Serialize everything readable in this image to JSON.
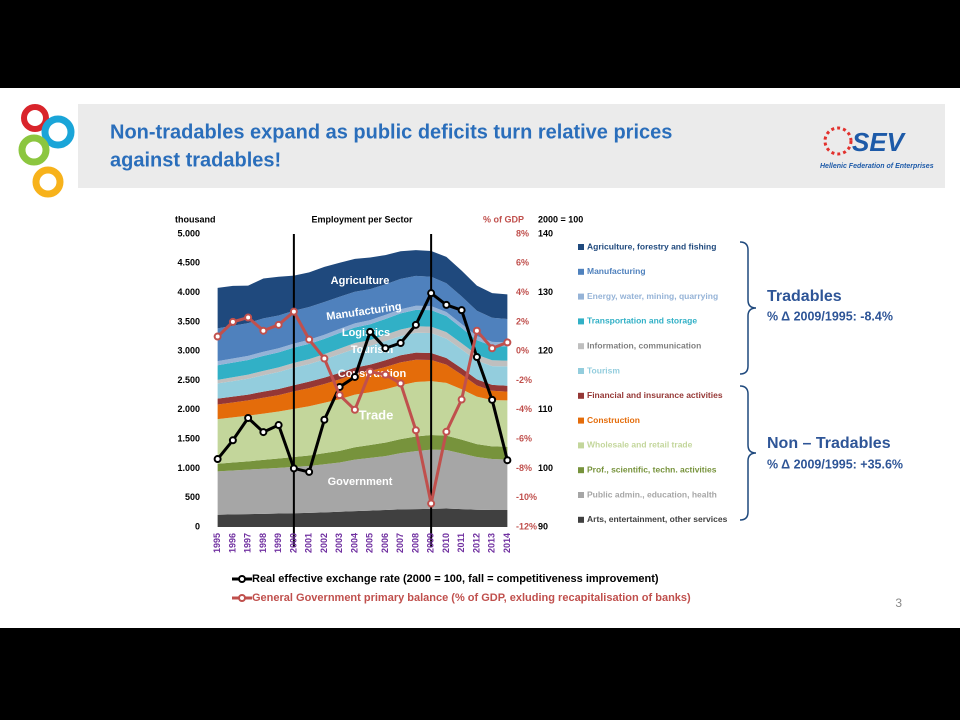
{
  "header": {
    "title": [
      "Non-tradables expand as public deficits turn relative prices",
      "against tradables!"
    ]
  },
  "logo": {
    "name": "SEV",
    "tagline": "Hellenic Federation of Enterprises"
  },
  "page_number": "3",
  "chart_data": {
    "type": "area",
    "title": "Employment per Sector",
    "y_label": "thousand",
    "y2_label": "% of GDP",
    "y3_label": "2000 = 100",
    "categories": [
      "1995",
      "1996",
      "1997",
      "1998",
      "1999",
      "2000",
      "2001",
      "2002",
      "2003",
      "2004",
      "2005",
      "2006",
      "2007",
      "2008",
      "2009",
      "2010",
      "2011",
      "2012",
      "2013",
      "2014"
    ],
    "ylim": [
      0,
      5000
    ],
    "yticks": [
      0,
      {
        "value": 500,
        "label": "500"
      },
      {
        "value": 1000,
        "label": "1.000"
      },
      {
        "value": 1500,
        "label": "1.500"
      },
      {
        "value": 2000,
        "label": "2.000"
      },
      {
        "value": 2500,
        "label": "2.500"
      },
      {
        "value": 3000,
        "label": "3.000"
      },
      {
        "value": 3500,
        "label": "3.500"
      },
      {
        "value": 4000,
        "label": "4.000"
      },
      {
        "value": 4500,
        "label": "4.500"
      },
      {
        "value": 5000,
        "label": "5.000"
      }
    ],
    "y2lim": [
      -12,
      8
    ],
    "y2ticks": [
      {
        "value": -12,
        "label": "-12%"
      },
      {
        "value": -10,
        "label": "-10%"
      },
      {
        "value": -8,
        "label": "-8%"
      },
      {
        "value": -6,
        "label": "-6%"
      },
      {
        "value": -4,
        "label": "-4%"
      },
      {
        "value": -2,
        "label": "-2%"
      },
      {
        "value": 0,
        "label": "0%"
      },
      {
        "value": 2,
        "label": "2%"
      },
      {
        "value": 4,
        "label": "4%"
      },
      {
        "value": 6,
        "label": "6%"
      },
      {
        "value": 8,
        "label": "8%"
      }
    ],
    "y3lim": [
      90,
      140
    ],
    "y3ticks": [
      90,
      100,
      110,
      120,
      130,
      140
    ],
    "series": [
      {
        "name": "Arts, entertainment, other services",
        "color": "#404040",
        "values": [
          210,
          215,
          220,
          225,
          230,
          235,
          240,
          250,
          260,
          270,
          280,
          290,
          300,
          305,
          310,
          315,
          305,
          295,
          290,
          290
        ]
      },
      {
        "name": "Public admin., education, health",
        "color": "#a6a6a6",
        "values": [
          740,
          750,
          760,
          770,
          780,
          790,
          800,
          820,
          840,
          880,
          900,
          920,
          960,
          990,
          1010,
          1000,
          950,
          900,
          870,
          860
        ]
      },
      {
        "name": "Prof., scientific, techn. activities",
        "color": "#77933c",
        "values": [
          130,
          135,
          140,
          150,
          160,
          170,
          180,
          190,
          200,
          210,
          220,
          230,
          240,
          250,
          250,
          245,
          235,
          220,
          215,
          220
        ]
      },
      {
        "name": "Wholesale and retail trade",
        "color": "#c3d69b",
        "values": [
          760,
          770,
          780,
          790,
          800,
          820,
          840,
          860,
          880,
          900,
          900,
          910,
          920,
          930,
          920,
          900,
          860,
          810,
          790,
          790
        ]
      },
      {
        "name": "Construction",
        "color": "#e46c0a",
        "values": [
          250,
          255,
          260,
          270,
          280,
          300,
          310,
          320,
          340,
          350,
          360,
          380,
          390,
          380,
          360,
          310,
          250,
          190,
          160,
          150
        ]
      },
      {
        "name": "Financial and insurance activities",
        "color": "#953735",
        "values": [
          100,
          100,
          100,
          105,
          105,
          105,
          110,
          110,
          110,
          110,
          110,
          115,
          120,
          120,
          120,
          115,
          110,
          105,
          100,
          100
        ]
      },
      {
        "name": "Tourism",
        "color": "#93cddd",
        "values": [
          260,
          265,
          270,
          280,
          290,
          300,
          300,
          310,
          320,
          320,
          320,
          330,
          330,
          340,
          340,
          330,
          320,
          320,
          320,
          330
        ]
      },
      {
        "name": "Information, communication",
        "color": "#bfbfbf",
        "values": [
          60,
          65,
          70,
          75,
          80,
          80,
          85,
          90,
          95,
          100,
          100,
          105,
          110,
          110,
          110,
          110,
          105,
          100,
          100,
          100
        ]
      },
      {
        "name": "Transportation and storage",
        "color": "#31b0c6",
        "values": [
          250,
          250,
          250,
          255,
          255,
          260,
          260,
          260,
          265,
          265,
          270,
          270,
          275,
          280,
          280,
          275,
          260,
          250,
          245,
          240
        ]
      },
      {
        "name": "Energy, water, mining, quarrying",
        "color": "#95b3d7",
        "values": [
          70,
          70,
          70,
          70,
          70,
          70,
          70,
          70,
          70,
          70,
          70,
          70,
          70,
          70,
          70,
          70,
          70,
          70,
          70,
          70
        ]
      },
      {
        "name": "Manufacturing",
        "color": "#4f81bd",
        "values": [
          560,
          560,
          560,
          570,
          560,
          560,
          560,
          560,
          550,
          540,
          530,
          520,
          520,
          510,
          500,
          490,
          470,
          430,
          410,
          400
        ]
      },
      {
        "name": "Agriculture, forestry and fishing",
        "color": "#1f497d",
        "values": [
          690,
          680,
          640,
          680,
          660,
          600,
          590,
          600,
          580,
          560,
          540,
          500,
          470,
          440,
          440,
          450,
          440,
          430,
          420,
          420
        ]
      },
      {
        "name": "Real effective exchange rate (2000 = 100, fall = competitiveness improvement)",
        "type": "line",
        "axis": "y3",
        "color": "#000000",
        "values": [
          101.6,
          104.8,
          108.6,
          106.2,
          107.4,
          100,
          99.4,
          108.3,
          113.9,
          115.6,
          123.3,
          120.5,
          121.4,
          124.5,
          129.9,
          127.9,
          127,
          119,
          111.7,
          101.4
        ]
      },
      {
        "name": "General Government primary balance (% of GDP, exluding recapitalisation of banks)",
        "type": "line",
        "axis": "y2",
        "color": "#c0504d",
        "values": [
          1,
          2,
          2.3,
          1.4,
          1.8,
          2.7,
          0.8,
          -0.5,
          -3,
          -4,
          -1.4,
          -1.6,
          -2.2,
          -5.4,
          -10.4,
          -5.5,
          -3.3,
          1.4,
          0.2,
          0.6
        ]
      }
    ],
    "annotations": [
      "Agriculture",
      "Manufacturing",
      "Logistics",
      "Tourism",
      "Construction",
      "Trade",
      "Government"
    ],
    "groups": [
      {
        "title": "Tradables",
        "note": "% Δ 2009/1995: -8.4%"
      },
      {
        "title": "Non – Tradables",
        "note": "% Δ 2009/1995: +35.6%"
      }
    ]
  }
}
